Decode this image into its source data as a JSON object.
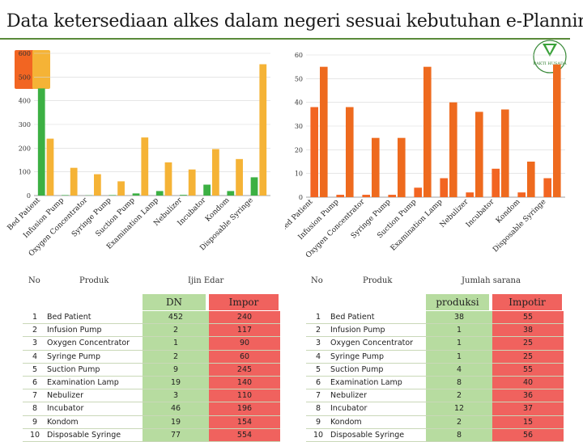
{
  "title": "Data ketersediaan alkes dalam negeri sesuai kebutuhan e-Planning",
  "logo_text": "BAKTI HUSADA",
  "colors": {
    "dn": "#3cb043",
    "impor": "#f5b336",
    "produksi": "#f26522",
    "impotir": "#ee6a1e",
    "sel_green": "#b7dca0",
    "sel_red": "#f0625e"
  },
  "chart_data": [
    {
      "type": "bar",
      "title": "Ijin Edar",
      "ylim": [
        0,
        600
      ],
      "yticks": [
        0,
        100,
        200,
        300,
        400,
        500,
        600
      ],
      "categories": [
        "Bed Patient",
        "Infusion Pump",
        "Oxygen Concentrator",
        "Syringe Pump",
        "Suction Pump",
        "Examination Lamp",
        "Nebulizer",
        "Incubator",
        "Kondom",
        "Disposable Syringe"
      ],
      "series": [
        {
          "name": "DN",
          "values": [
            452,
            2,
            1,
            2,
            9,
            19,
            3,
            46,
            19,
            77
          ]
        },
        {
          "name": "Impor",
          "values": [
            240,
            117,
            90,
            60,
            245,
            140,
            110,
            196,
            154,
            554
          ]
        }
      ]
    },
    {
      "type": "bar",
      "title": "Jumlah sarana",
      "ylim": [
        0,
        60
      ],
      "yticks": [
        0,
        10,
        20,
        30,
        40,
        50,
        60
      ],
      "categories": [
        "Bed Patient",
        "Infusion Pump",
        "Oxygen Concentrator",
        "Syringe Pump",
        "Suction Pump",
        "Examination Lamp",
        "Nebulizer",
        "Incubator",
        "Kondom",
        "Disposable Syringe"
      ],
      "series": [
        {
          "name": "produksi",
          "values": [
            38,
            1,
            1,
            1,
            4,
            8,
            2,
            12,
            2,
            8
          ]
        },
        {
          "name": "Impotir",
          "values": [
            55,
            38,
            25,
            25,
            55,
            40,
            36,
            37,
            15,
            56
          ]
        }
      ]
    }
  ],
  "left_table": {
    "headers": {
      "no": "No",
      "produk": "Produk",
      "group": "Ijin Edar",
      "col1": "DN",
      "col2": "Impor"
    },
    "rows": [
      [
        "1",
        "Bed Patient",
        "452",
        "240"
      ],
      [
        "2",
        "Infusion Pump",
        "2",
        "117"
      ],
      [
        "3",
        "Oxygen Concentrator",
        "1",
        "90"
      ],
      [
        "4",
        "Syringe Pump",
        "2",
        "60"
      ],
      [
        "5",
        "Suction Pump",
        "9",
        "245"
      ],
      [
        "6",
        "Examination Lamp",
        "19",
        "140"
      ],
      [
        "7",
        "Nebulizer",
        "3",
        "110"
      ],
      [
        "8",
        "Incubator",
        "46",
        "196"
      ],
      [
        "9",
        "Kondom",
        "19",
        "154"
      ],
      [
        "10",
        "Disposable Syringe",
        "77",
        "554"
      ]
    ]
  },
  "right_table": {
    "headers": {
      "no": "No",
      "produk": "Produk",
      "group": "Jumlah sarana",
      "col1": "produksi",
      "col2": "Impotir"
    },
    "rows": [
      [
        "1",
        "Bed Patient",
        "38",
        "55"
      ],
      [
        "2",
        "Infusion Pump",
        "1",
        "38"
      ],
      [
        "3",
        "Oxygen Concentrator",
        "1",
        "25"
      ],
      [
        "4",
        "Syringe Pump",
        "1",
        "25"
      ],
      [
        "5",
        "Suction Pump",
        "4",
        "55"
      ],
      [
        "6",
        "Examination Lamp",
        "8",
        "40"
      ],
      [
        "7",
        "Nebulizer",
        "2",
        "36"
      ],
      [
        "8",
        "Incubator",
        "12",
        "37"
      ],
      [
        "9",
        "Kondom",
        "2",
        "15"
      ],
      [
        "10",
        "Disposable Syringe",
        "8",
        "56"
      ]
    ]
  }
}
